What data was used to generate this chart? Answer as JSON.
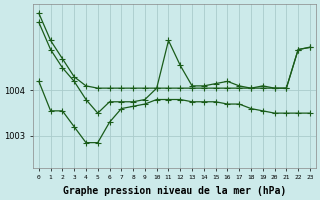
{
  "background_color": "#cceaea",
  "grid_color": "#aacccc",
  "line_color": "#1a5c1a",
  "xlabel": "Graphe pression niveau de la mer (hPa)",
  "xlabel_fontsize": 7,
  "yticks": [
    1003,
    1004
  ],
  "ylim": [
    1002.3,
    1005.9
  ],
  "xlim": [
    -0.5,
    23.5
  ],
  "series1_x": [
    0,
    1,
    2,
    3,
    4,
    5,
    6,
    7,
    8,
    9,
    10,
    11,
    12,
    13,
    14,
    15,
    16,
    17,
    18,
    19,
    20,
    21,
    22,
    23
  ],
  "series1_y": [
    1005.7,
    1005.1,
    1004.7,
    1004.3,
    1004.1,
    1004.05,
    1004.05,
    1004.05,
    1004.05,
    1004.05,
    1004.05,
    1004.05,
    1004.05,
    1004.05,
    1004.05,
    1004.05,
    1004.05,
    1004.05,
    1004.05,
    1004.05,
    1004.05,
    1004.05,
    1004.9,
    1004.95
  ],
  "series2_x": [
    0,
    1,
    2,
    3,
    4,
    5,
    6,
    7,
    8,
    9,
    10,
    11,
    12,
    13,
    14,
    15,
    16,
    17,
    18,
    19,
    20,
    21,
    22,
    23
  ],
  "series2_y": [
    1005.5,
    1004.9,
    1004.5,
    1004.2,
    1003.8,
    1003.5,
    1003.75,
    1003.75,
    1003.75,
    1003.8,
    1004.05,
    1005.1,
    1004.55,
    1004.1,
    1004.1,
    1004.15,
    1004.2,
    1004.1,
    1004.05,
    1004.1,
    1004.05,
    1004.05,
    1004.9,
    1004.95
  ],
  "series3_x": [
    0,
    1,
    2,
    3,
    4,
    5,
    6,
    7,
    8,
    9,
    10,
    11,
    12,
    13,
    14,
    15,
    16,
    17,
    18,
    19,
    20,
    21,
    22,
    23
  ],
  "series3_y": [
    1004.2,
    1003.55,
    1003.55,
    1003.2,
    1002.85,
    1002.85,
    1003.3,
    1003.6,
    1003.65,
    1003.7,
    1003.8,
    1003.8,
    1003.8,
    1003.75,
    1003.75,
    1003.75,
    1003.7,
    1003.7,
    1003.6,
    1003.55,
    1003.5,
    1003.5,
    1003.5,
    1003.5
  ]
}
